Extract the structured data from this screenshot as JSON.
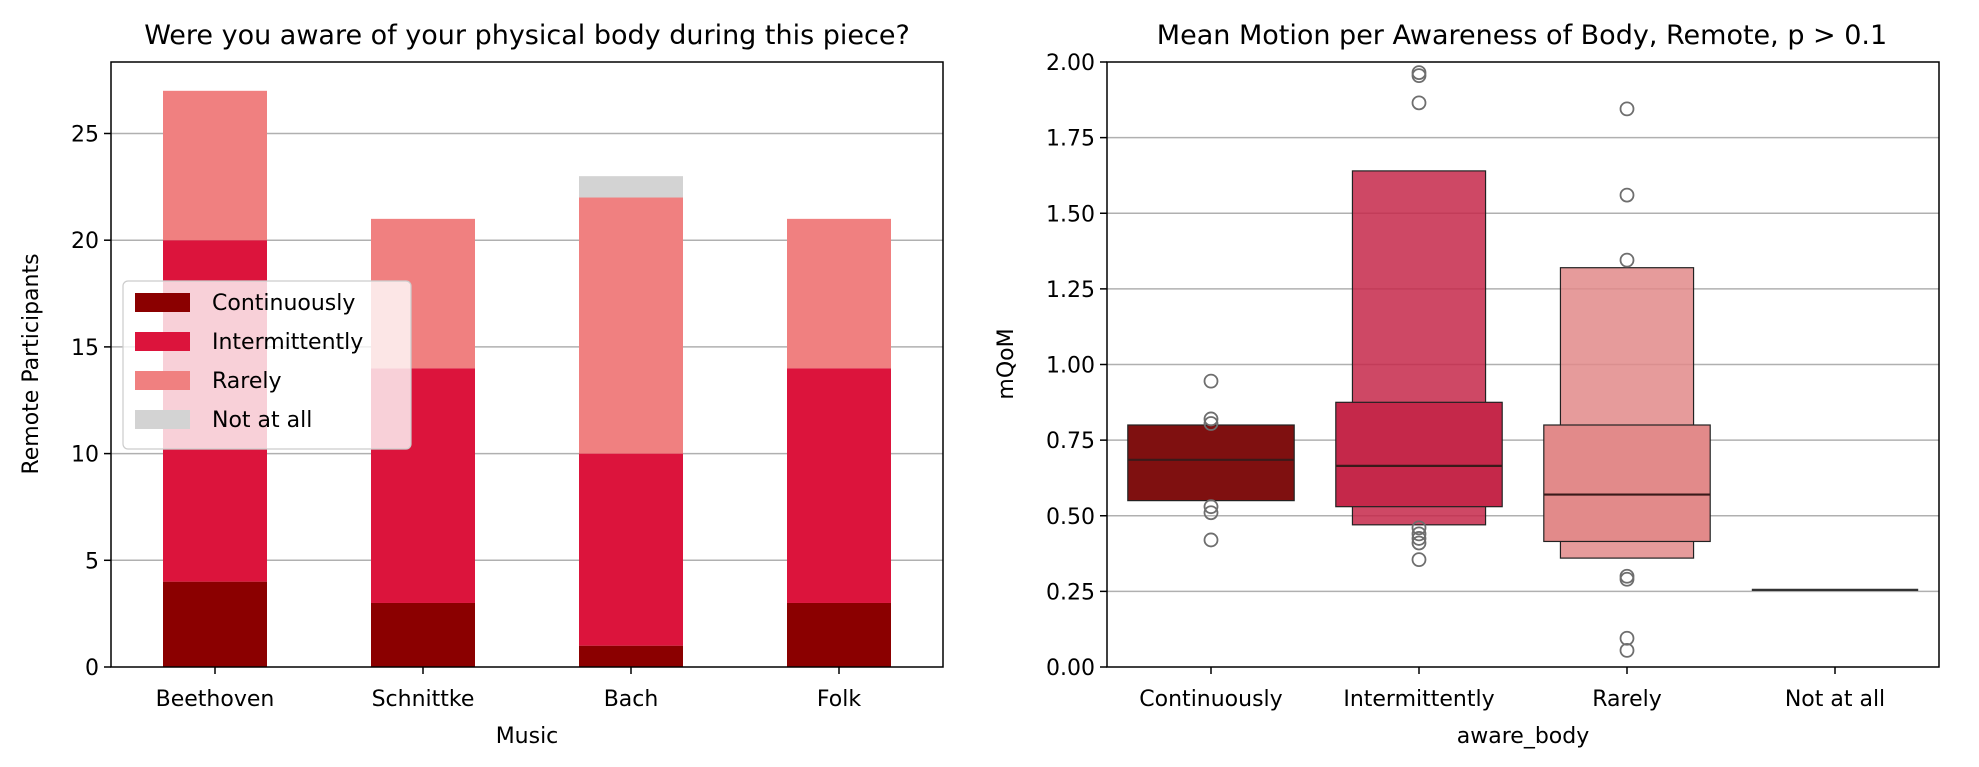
{
  "chart_data": [
    {
      "type": "bar",
      "stacked": true,
      "title": "Were you aware of your physical body during this piece?",
      "xlabel": "Music",
      "ylabel": "Remote Participants",
      "categories": [
        "Beethoven",
        "Schnittke",
        "Bach",
        "Folk"
      ],
      "series": [
        {
          "name": "Continuously",
          "values": [
            4,
            3,
            1,
            3
          ],
          "color": "#8b0000"
        },
        {
          "name": "Intermittently",
          "values": [
            16,
            11,
            9,
            11
          ],
          "color": "#dc143c"
        },
        {
          "name": "Rarely",
          "values": [
            7,
            7,
            12,
            7
          ],
          "color": "#f08080"
        },
        {
          "name": "Not at all",
          "values": [
            0,
            0,
            1,
            0
          ],
          "color": "#d3d3d3"
        }
      ],
      "ylim": [
        0,
        28.35
      ],
      "yticks": [
        0,
        5,
        10,
        15,
        20,
        25
      ],
      "grid": "y",
      "legend": "center-left"
    },
    {
      "type": "boxen",
      "title": "Mean Motion per Awareness of Body, Remote, p > 0.1",
      "xlabel": "aware_body",
      "ylabel": "mQoM",
      "categories": [
        "Continuously",
        "Intermittently",
        "Rarely",
        "Not at all"
      ],
      "ylim": [
        0,
        2.0
      ],
      "yticks": [
        "0.00",
        "0.25",
        "0.50",
        "0.75",
        "1.00",
        "1.25",
        "1.50",
        "1.75",
        "2.00"
      ],
      "grid": "y",
      "boxes": [
        {
          "category": "Continuously",
          "color": "#7f1010",
          "median": 0.685,
          "levels": [
            [
              0.55,
              0.8
            ]
          ],
          "outliers": [
            0.945,
            0.82,
            0.805,
            0.53,
            0.51,
            0.42
          ]
        },
        {
          "category": "Intermittently",
          "color": "#c5284a",
          "median": 0.665,
          "levels": [
            [
              0.53,
              0.875
            ],
            [
              0.47,
              1.64
            ]
          ],
          "outliers": [
            1.965,
            1.955,
            1.865,
            0.46,
            0.44,
            0.425,
            0.41,
            0.355
          ]
        },
        {
          "category": "Rarely",
          "color": "#e28a8a",
          "median": 0.57,
          "levels": [
            [
              0.415,
              0.8
            ],
            [
              0.36,
              1.32
            ]
          ],
          "outliers": [
            1.845,
            1.56,
            1.345,
            0.3,
            0.29,
            0.095,
            0.055
          ]
        },
        {
          "category": "Not at all",
          "color": "#333333",
          "median": 0.255,
          "levels": [],
          "outliers": []
        }
      ]
    }
  ]
}
